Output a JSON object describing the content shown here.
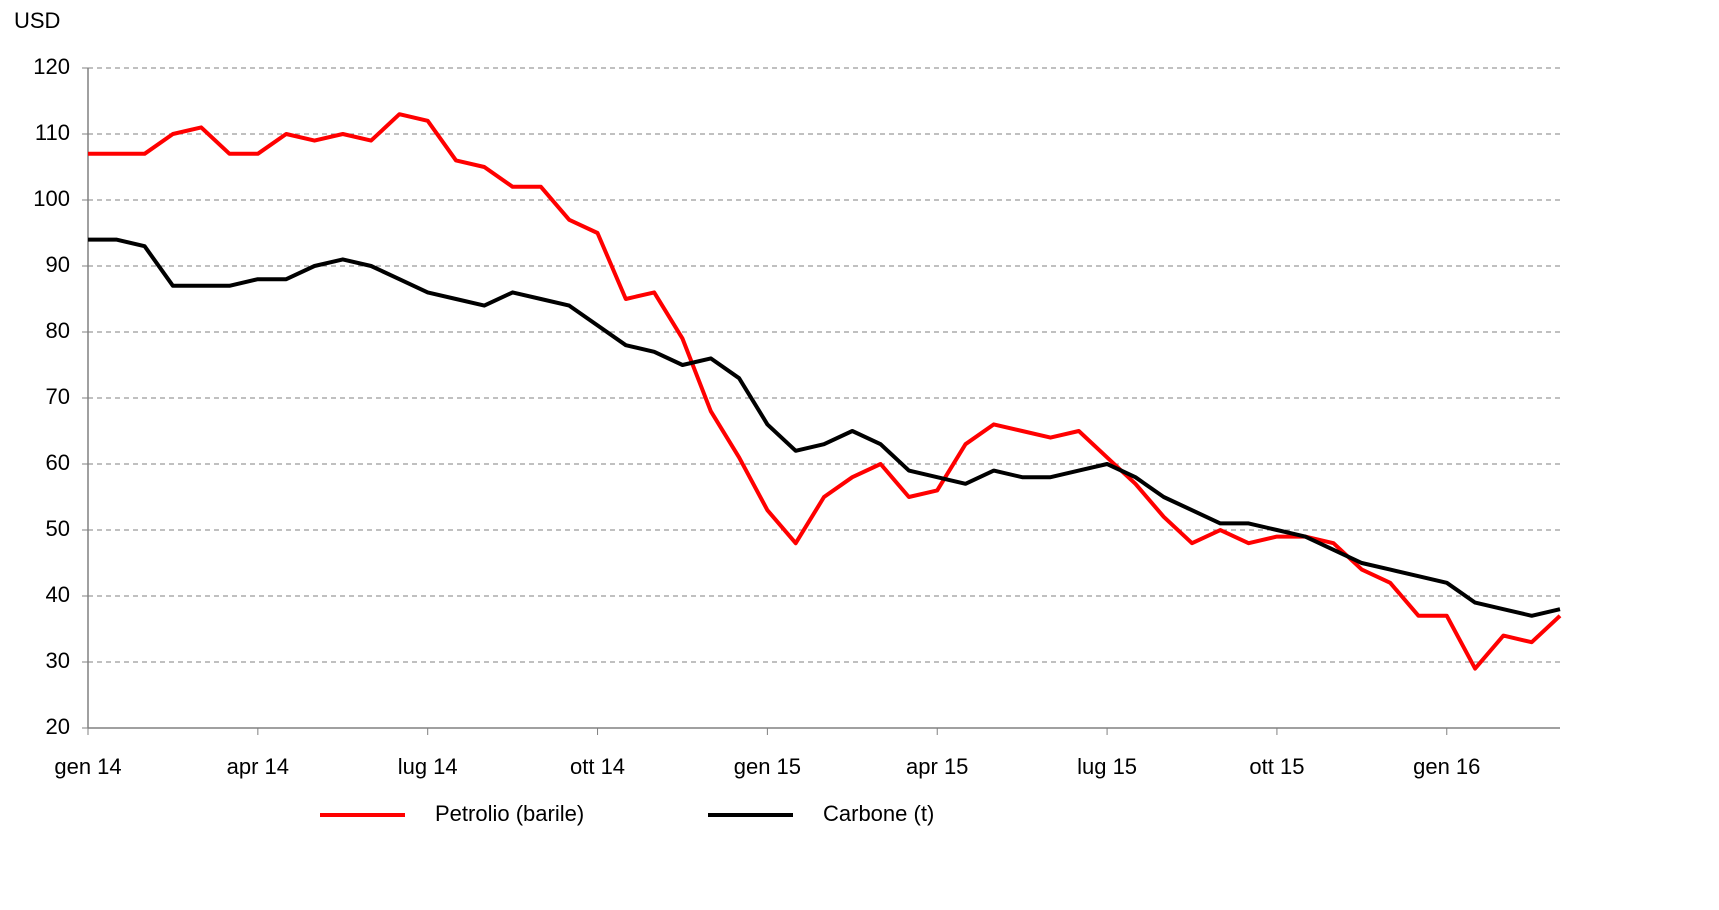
{
  "chart_data": {
    "type": "line",
    "y_axis_label": "USD",
    "categories": [
      "gen 14",
      null,
      null,
      null,
      null,
      null,
      "apr 14",
      null,
      null,
      null,
      null,
      null,
      "lug 14",
      null,
      null,
      null,
      null,
      null,
      "ott 14",
      null,
      null,
      null,
      null,
      null,
      "gen 15",
      null,
      null,
      null,
      null,
      null,
      "apr 15",
      null,
      null,
      null,
      null,
      null,
      "lug 15",
      null,
      null,
      null,
      null,
      null,
      "ott 15",
      null,
      null,
      null,
      null,
      null,
      "gen 16",
      null,
      null,
      null,
      null
    ],
    "series": [
      {
        "name": "Petrolio (barile)",
        "color": "#ff0000",
        "values": [
          107,
          107,
          107,
          110,
          111,
          107,
          107,
          110,
          109,
          110,
          109,
          113,
          112,
          106,
          105,
          102,
          102,
          97,
          95,
          85,
          86,
          79,
          68,
          61,
          53,
          48,
          55,
          58,
          60,
          55,
          56,
          63,
          66,
          65,
          64,
          65,
          61,
          57,
          52,
          48,
          50,
          48,
          49,
          49,
          48,
          44,
          42,
          37,
          37,
          29,
          34,
          33,
          37
        ]
      },
      {
        "name": "Carbone (t)",
        "color": "#000000",
        "values": [
          94,
          94,
          93,
          87,
          87,
          87,
          88,
          88,
          90,
          91,
          90,
          88,
          86,
          85,
          84,
          86,
          85,
          84,
          81,
          78,
          77,
          75,
          76,
          73,
          66,
          62,
          63,
          65,
          63,
          59,
          58,
          57,
          59,
          58,
          58,
          59,
          60,
          58,
          55,
          53,
          51,
          51,
          50,
          49,
          47,
          45,
          44,
          43,
          42,
          39,
          38,
          37,
          38
        ]
      }
    ],
    "ylim": [
      20,
      120
    ],
    "yticks": [
      20,
      30,
      40,
      50,
      60,
      70,
      80,
      90,
      100,
      110,
      120
    ],
    "grid": true,
    "legend": "bottom"
  }
}
